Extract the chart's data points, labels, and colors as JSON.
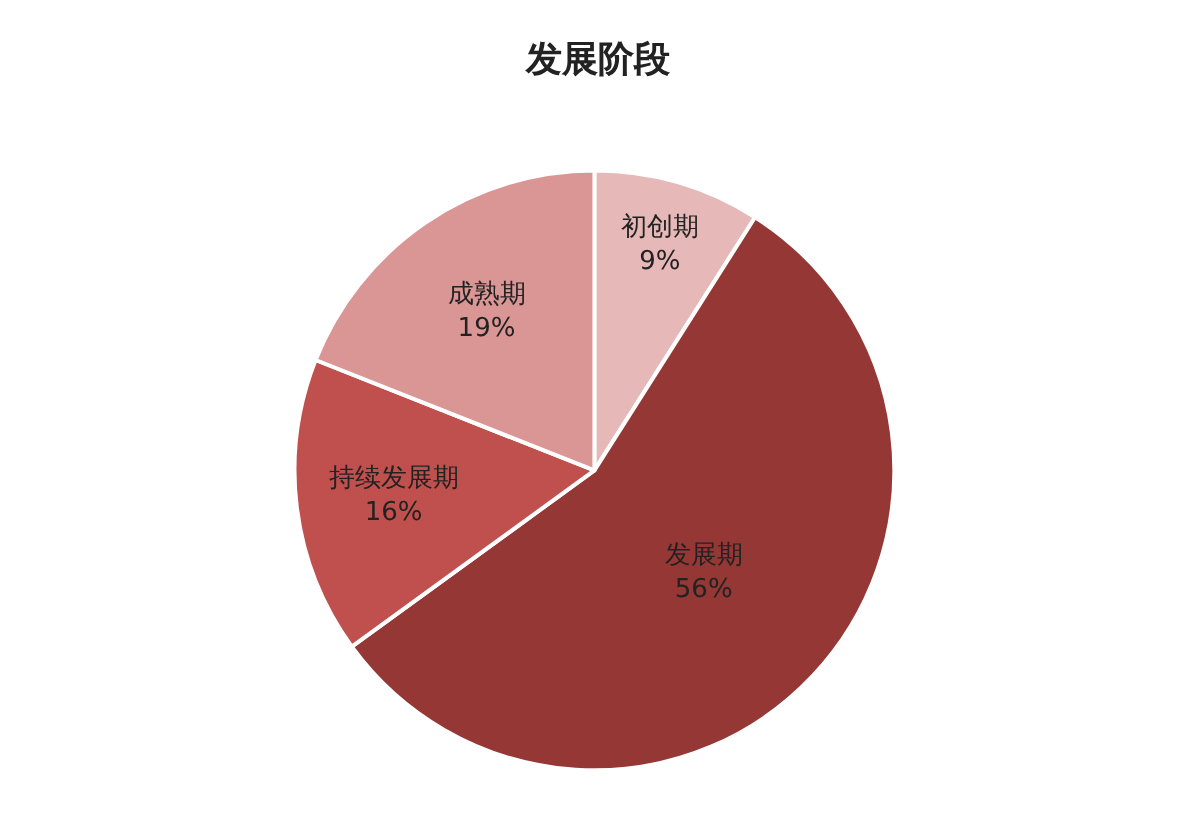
{
  "chart_data": {
    "type": "pie",
    "title": "发展阶段",
    "categories": [
      "初创期",
      "发展期",
      "持续发展期",
      "成熟期"
    ],
    "values": [
      9,
      56,
      16,
      19
    ],
    "value_labels": [
      "9%",
      "56%",
      "16%",
      "19%"
    ],
    "colors": [
      "#e6b8b7",
      "#953735",
      "#c0504d",
      "#d99694"
    ],
    "legend": false
  }
}
